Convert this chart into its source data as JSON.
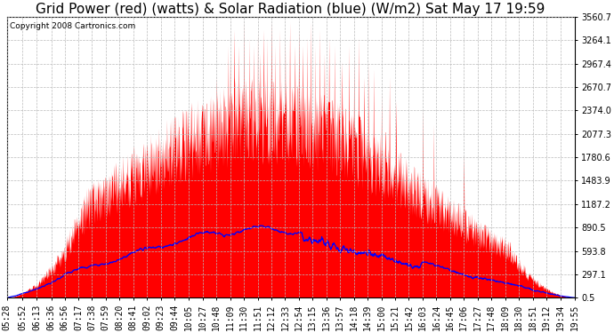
{
  "title": "Grid Power (red) (watts) & Solar Radiation (blue) (W/m2) Sat May 17 19:59",
  "copyright": "Copyright 2008 Cartronics.com",
  "yticks": [
    0.5,
    297.1,
    593.8,
    890.5,
    1187.2,
    1483.9,
    1780.6,
    2077.3,
    2374.0,
    2670.7,
    2967.4,
    3264.1,
    3560.7
  ],
  "ymin": 0.5,
  "ymax": 3560.7,
  "xtick_labels": [
    "05:28",
    "05:52",
    "06:13",
    "06:36",
    "06:56",
    "07:17",
    "07:38",
    "07:59",
    "08:20",
    "08:41",
    "09:02",
    "09:23",
    "09:44",
    "10:05",
    "10:27",
    "10:48",
    "11:09",
    "11:30",
    "11:51",
    "12:12",
    "12:33",
    "12:54",
    "13:15",
    "13:36",
    "13:57",
    "14:18",
    "14:39",
    "15:00",
    "15:21",
    "15:42",
    "16:03",
    "16:24",
    "16:45",
    "17:06",
    "17:27",
    "17:48",
    "18:09",
    "18:30",
    "18:51",
    "19:12",
    "19:34",
    "19:55"
  ],
  "bg_color": "#ffffff",
  "plot_bg": "#ffffff",
  "grid_color": "#bbbbbb",
  "red_color": "#ff0000",
  "blue_color": "#0000ff",
  "title_fontsize": 11,
  "tick_fontsize": 7,
  "copyright_fontsize": 6.5
}
